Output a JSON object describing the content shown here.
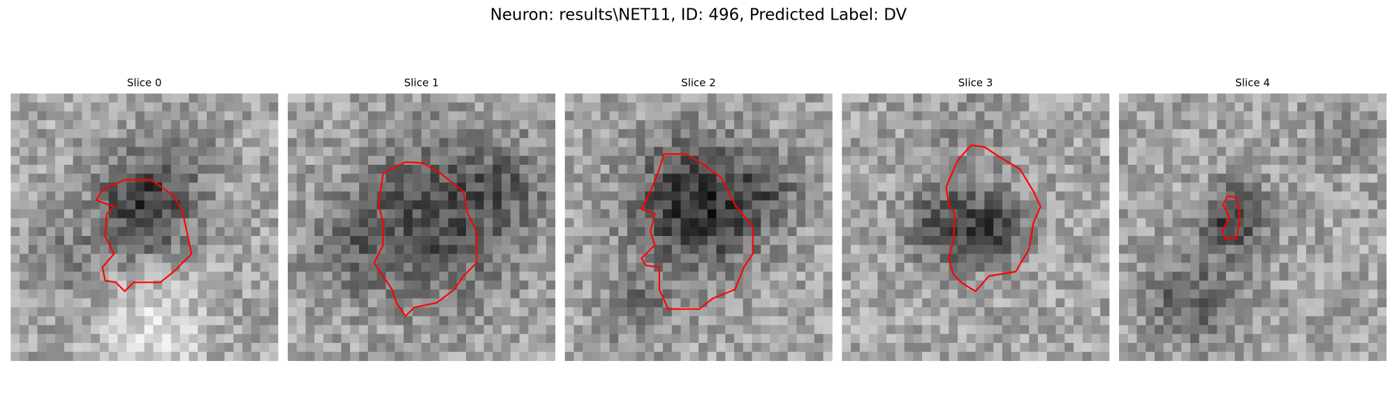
{
  "title": "Neuron: results\\NET11, ID: 496, Predicted Label: DV",
  "panels": [
    {
      "title": "Slice 0"
    },
    {
      "title": "Slice 1"
    },
    {
      "title": "Slice 2"
    },
    {
      "title": "Slice 3"
    },
    {
      "title": "Slice 4"
    }
  ]
}
